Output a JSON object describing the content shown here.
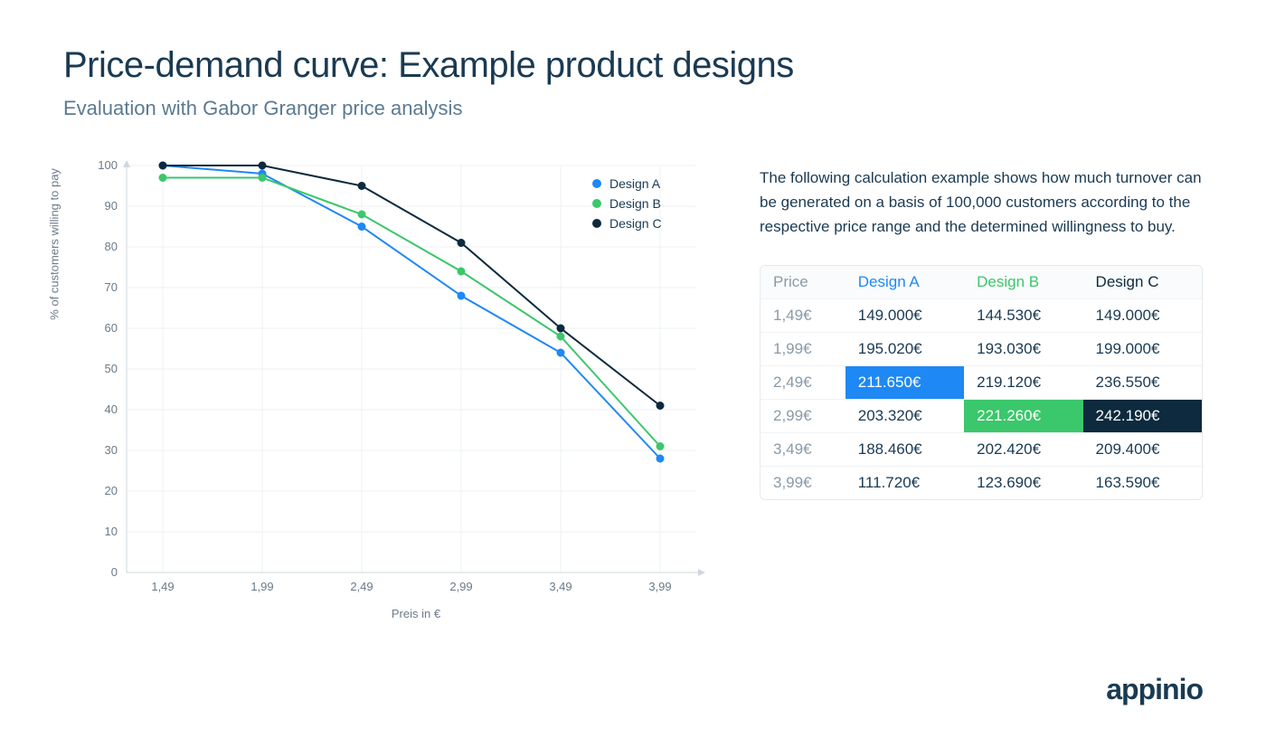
{
  "header": {
    "title": "Price-demand curve: Example product designs",
    "subtitle": "Evaluation with Gabor Granger price analysis"
  },
  "description": "The following calculation example shows how much turnover can be generated on a basis of 100,000 customers according to the respective price range and the determined willingness to buy.",
  "brand": "appinio",
  "chart": {
    "type": "line",
    "y_label": "% of customers willing to pay",
    "x_label": "Preis in €",
    "x_categories": [
      "1,49",
      "1,99",
      "2,49",
      "2,99",
      "3,49",
      "3,99"
    ],
    "y_ticks": [
      0,
      10,
      20,
      30,
      40,
      50,
      60,
      70,
      80,
      90,
      100
    ],
    "ylim": [
      0,
      100
    ],
    "series": [
      {
        "name": "Design A",
        "color": "#1e88f5",
        "values": [
          100,
          98,
          85,
          68,
          54,
          28
        ]
      },
      {
        "name": "Design B",
        "color": "#3bc76b",
        "values": [
          97,
          97,
          88,
          74,
          58,
          31
        ]
      },
      {
        "name": "Design C",
        "color": "#0d2a3e",
        "values": [
          100,
          100,
          95,
          81,
          60,
          41
        ]
      }
    ],
    "line_width": 2,
    "marker_radius": 4.5,
    "background_color": "#ffffff",
    "grid_color": "#eef1f3",
    "axis_color": "#cfd7de",
    "tick_fontsize": 13,
    "label_fontsize": 13,
    "legend_fontsize": 14,
    "legend_position": "top-right"
  },
  "table": {
    "columns": [
      "Price",
      "Design A",
      "Design B",
      "Design C"
    ],
    "column_colors": [
      "#8a9aa8",
      "#1e88f5",
      "#3bc76b",
      "#0d2a3e"
    ],
    "rows": [
      [
        "1,49€",
        "149.000€",
        "144.530€",
        "149.000€"
      ],
      [
        "1,99€",
        "195.020€",
        "193.030€",
        "199.000€"
      ],
      [
        "2,49€",
        "211.650€",
        "219.120€",
        "236.550€"
      ],
      [
        "2,99€",
        "203.320€",
        "221.260€",
        "242.190€"
      ],
      [
        "3,49€",
        "188.460€",
        "202.420€",
        "209.400€"
      ],
      [
        "3,99€",
        "111.720€",
        "123.690€",
        "163.590€"
      ]
    ],
    "highlights": [
      {
        "row": 2,
        "col": 1,
        "class": "hl-a"
      },
      {
        "row": 3,
        "col": 2,
        "class": "hl-b"
      },
      {
        "row": 3,
        "col": 3,
        "class": "hl-c"
      }
    ],
    "border_color": "#e5e9ec",
    "header_bg": "#fafbfc",
    "text_color": "#1a3a52",
    "muted_color": "#8a9aa8",
    "fontsize": 17
  }
}
